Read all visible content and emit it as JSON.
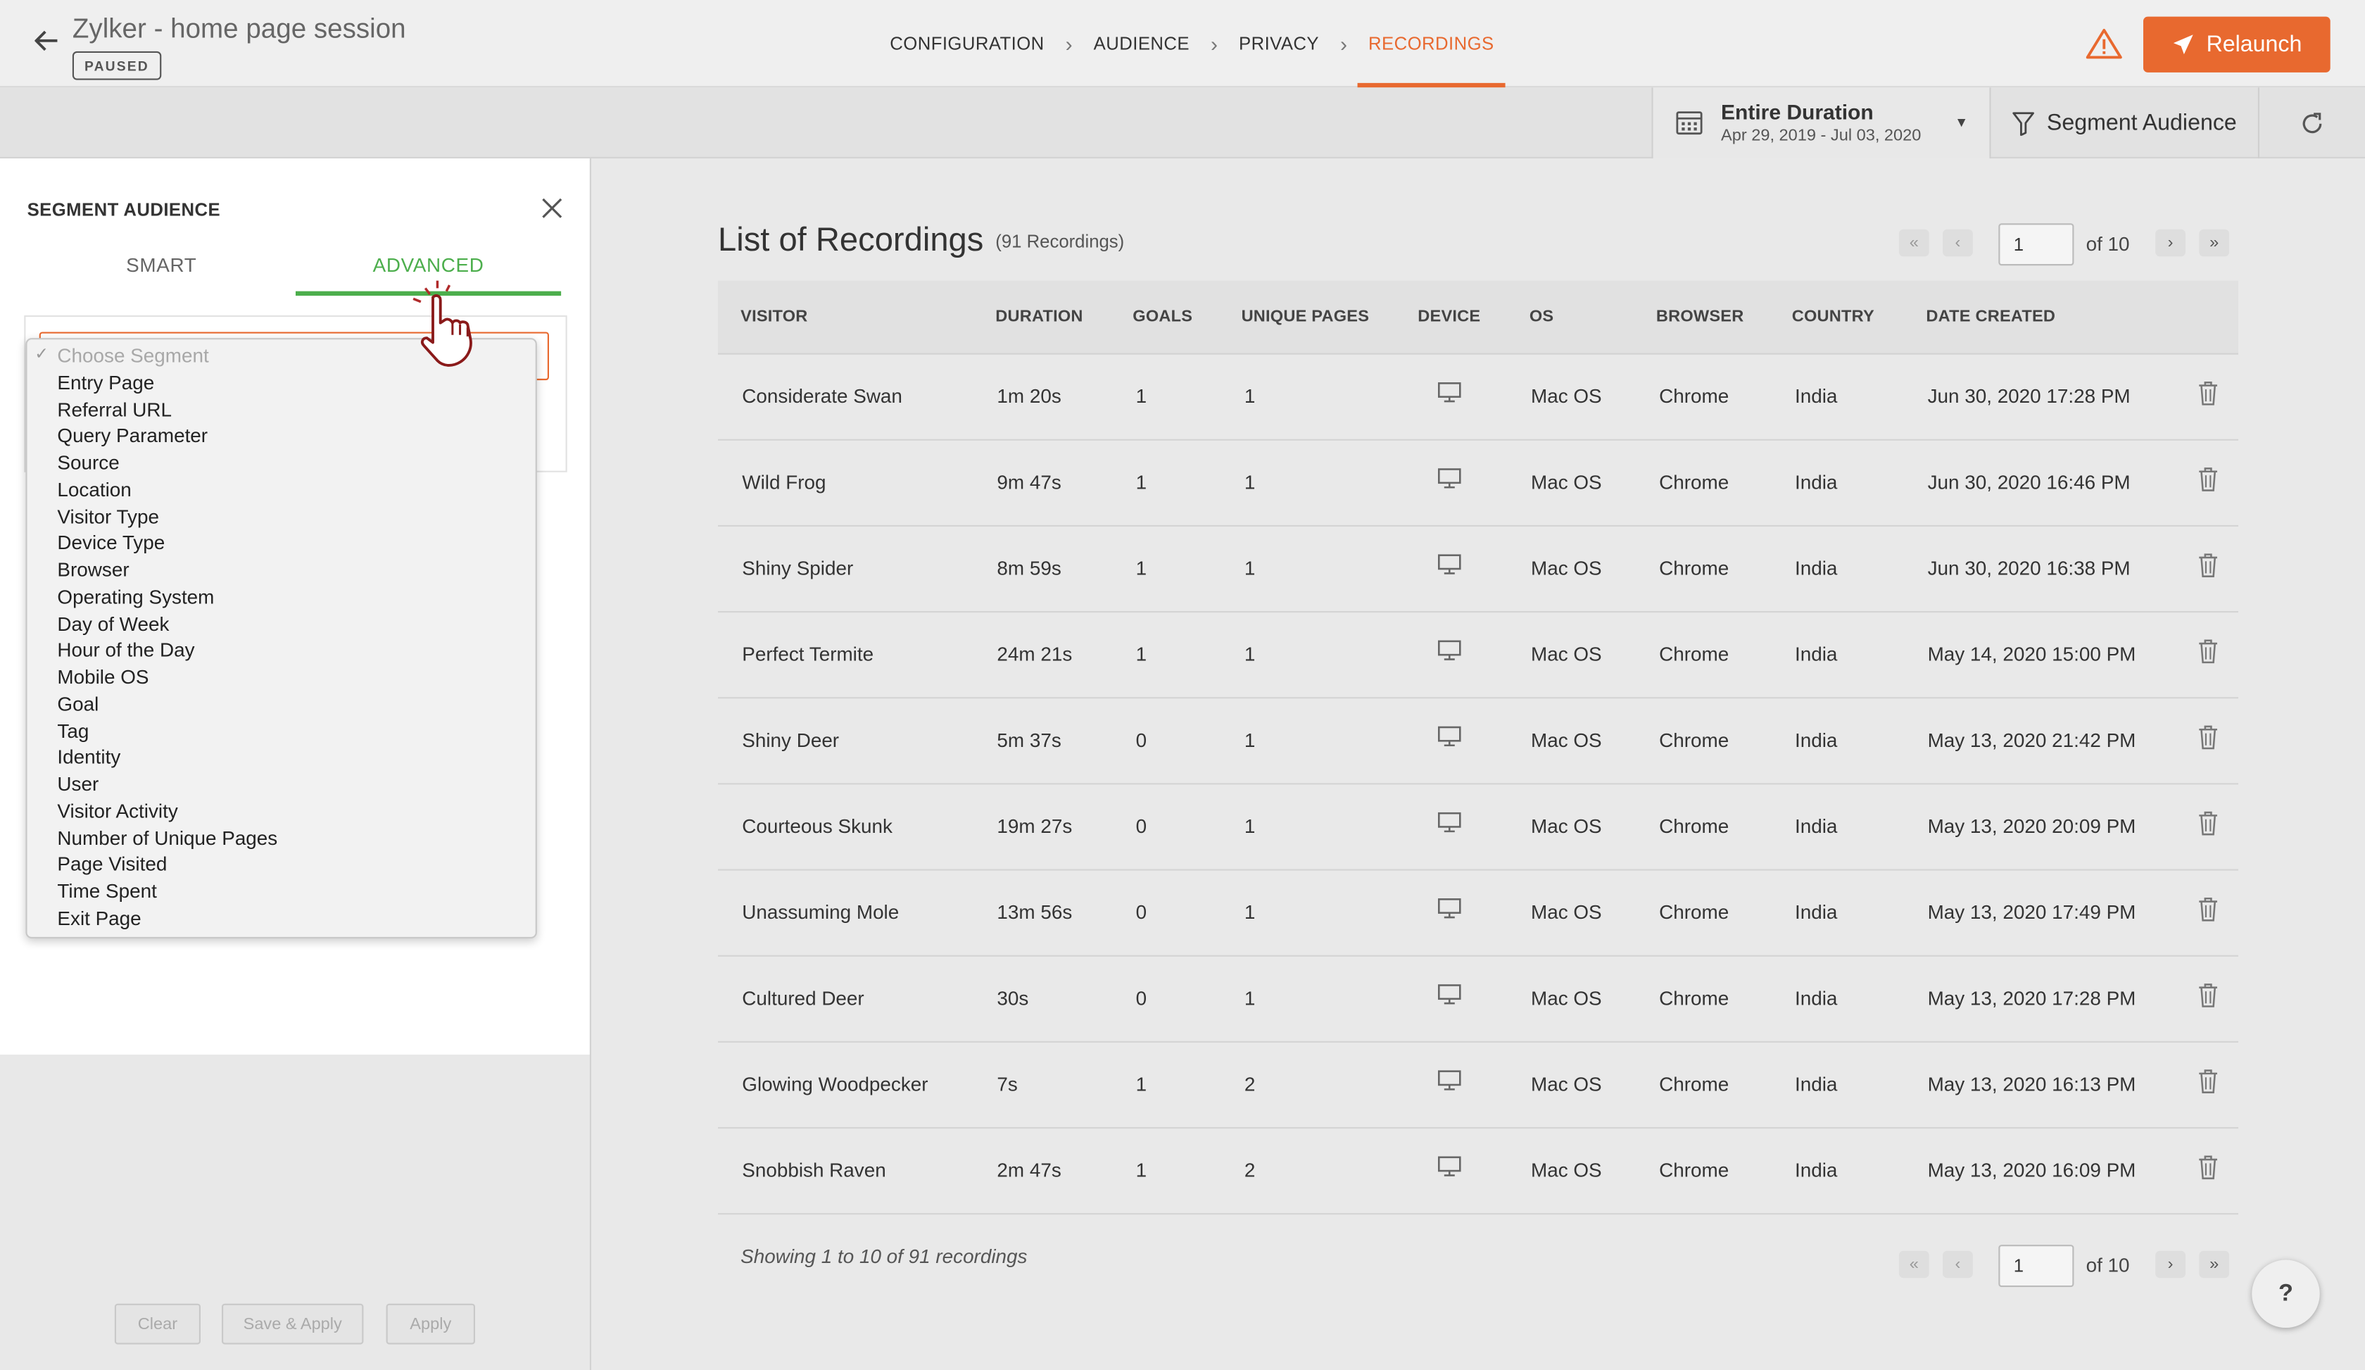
{
  "header": {
    "title": "Zylker - home page session",
    "status": "PAUSED",
    "steps": [
      "CONFIGURATION",
      "AUDIENCE",
      "PRIVACY",
      "RECORDINGS"
    ],
    "relaunch_label": "Relaunch"
  },
  "toolbar": {
    "date_title": "Entire Duration",
    "date_range": "Apr 29, 2019 - Jul 03, 2020",
    "segment_label": "Segment Audience"
  },
  "segment_panel": {
    "title": "SEGMENT AUDIENCE",
    "tabs": [
      "SMART",
      "ADVANCED"
    ],
    "dropdown_placeholder": "Choose Segment",
    "options": [
      "Entry Page",
      "Referral URL",
      "Query Parameter",
      "Source",
      "Location",
      "Visitor Type",
      "Device Type",
      "Browser",
      "Operating System",
      "Day of Week",
      "Hour of the Day",
      "Mobile OS",
      "Goal",
      "Tag",
      "Identity",
      "User",
      "Visitor Activity",
      "Number of Unique Pages",
      "Page Visited",
      "Time Spent",
      "Exit Page"
    ],
    "buttons": {
      "clear": "Clear",
      "save_apply": "Save & Apply",
      "apply": "Apply"
    }
  },
  "recordings": {
    "title": "List of Recordings",
    "count": "(91 Recordings)",
    "page": "1",
    "of_pages": "of 10",
    "columns": [
      "VISITOR",
      "DURATION",
      "GOALS",
      "UNIQUE PAGES",
      "DEVICE",
      "OS",
      "BROWSER",
      "COUNTRY",
      "DATE CREATED"
    ],
    "rows": [
      {
        "visitor": "Considerate Swan",
        "duration": "1m 20s",
        "goals": "1",
        "pages": "1",
        "device": "desktop-icon",
        "os": "Mac OS",
        "browser": "Chrome",
        "country": "India",
        "date": "Jun 30, 2020 17:28 PM"
      },
      {
        "visitor": "Wild Frog",
        "duration": "9m 47s",
        "goals": "1",
        "pages": "1",
        "device": "desktop-icon",
        "os": "Mac OS",
        "browser": "Chrome",
        "country": "India",
        "date": "Jun 30, 2020 16:46 PM"
      },
      {
        "visitor": "Shiny Spider",
        "duration": "8m 59s",
        "goals": "1",
        "pages": "1",
        "device": "desktop-icon",
        "os": "Mac OS",
        "browser": "Chrome",
        "country": "India",
        "date": "Jun 30, 2020 16:38 PM"
      },
      {
        "visitor": "Perfect Termite",
        "duration": "24m 21s",
        "goals": "1",
        "pages": "1",
        "device": "desktop-icon",
        "os": "Mac OS",
        "browser": "Chrome",
        "country": "India",
        "date": "May 14, 2020 15:00 PM"
      },
      {
        "visitor": "Shiny Deer",
        "duration": "5m 37s",
        "goals": "0",
        "pages": "1",
        "device": "desktop-icon",
        "os": "Mac OS",
        "browser": "Chrome",
        "country": "India",
        "date": "May 13, 2020 21:42 PM"
      },
      {
        "visitor": "Courteous Skunk",
        "duration": "19m 27s",
        "goals": "0",
        "pages": "1",
        "device": "desktop-icon",
        "os": "Mac OS",
        "browser": "Chrome",
        "country": "India",
        "date": "May 13, 2020 20:09 PM"
      },
      {
        "visitor": "Unassuming Mole",
        "duration": "13m 56s",
        "goals": "0",
        "pages": "1",
        "device": "desktop-icon",
        "os": "Mac OS",
        "browser": "Chrome",
        "country": "India",
        "date": "May 13, 2020 17:49 PM"
      },
      {
        "visitor": "Cultured Deer",
        "duration": "30s",
        "goals": "0",
        "pages": "1",
        "device": "desktop-icon",
        "os": "Mac OS",
        "browser": "Chrome",
        "country": "India",
        "date": "May 13, 2020 17:28 PM"
      },
      {
        "visitor": "Glowing Woodpecker",
        "duration": "7s",
        "goals": "1",
        "pages": "2",
        "device": "desktop-icon",
        "os": "Mac OS",
        "browser": "Chrome",
        "country": "India",
        "date": "May 13, 2020 16:13 PM"
      },
      {
        "visitor": "Snobbish Raven",
        "duration": "2m 47s",
        "goals": "1",
        "pages": "2",
        "device": "desktop-icon",
        "os": "Mac OS",
        "browser": "Chrome",
        "country": "India",
        "date": "May 13, 2020 16:09 PM"
      }
    ],
    "showing": "Showing 1 to 10 of 91 recordings"
  },
  "help_label": "?",
  "colors": {
    "accent": "#e8692f",
    "tab_active": "#4cae4c"
  }
}
